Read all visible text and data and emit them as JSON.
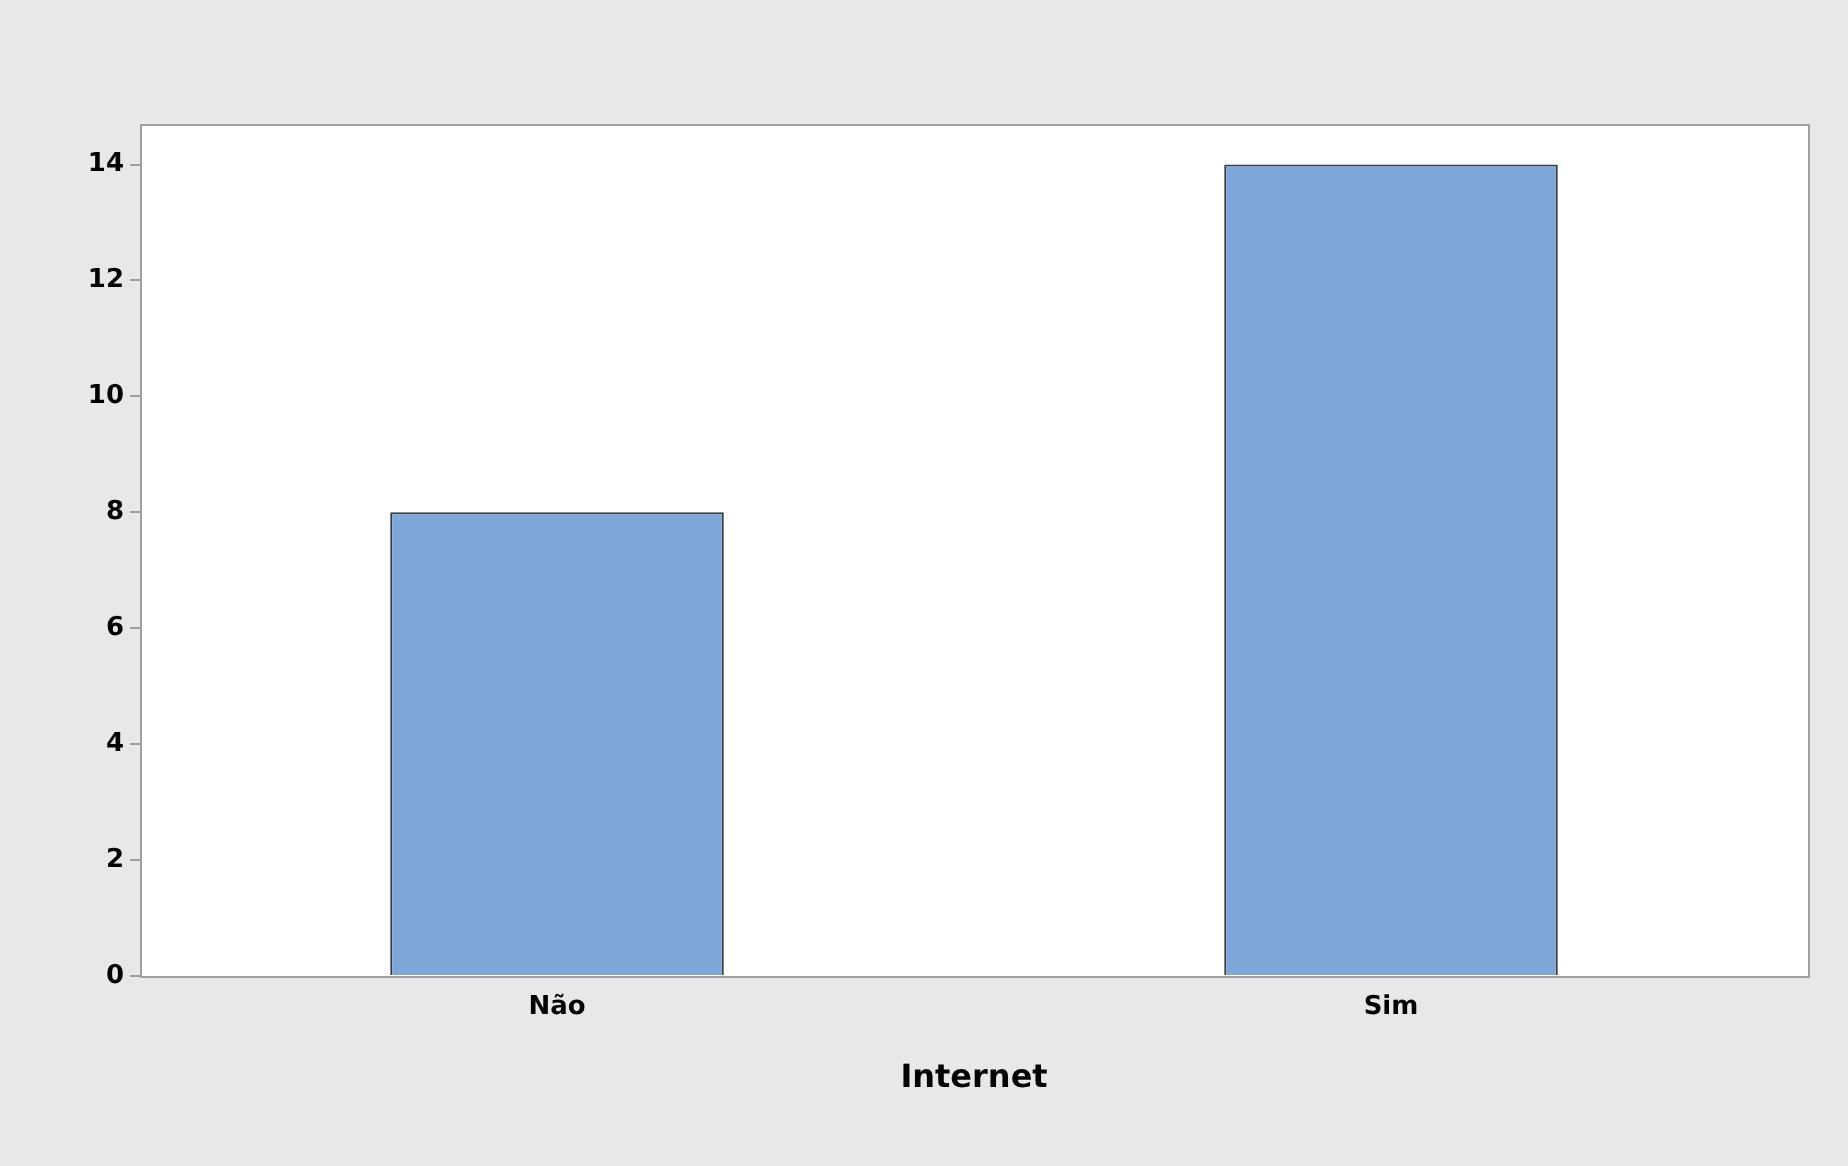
{
  "chart_data": {
    "type": "bar",
    "xlabel": "Internet",
    "categories": [
      "Não",
      "Sim"
    ],
    "values": [
      8,
      14
    ],
    "color": "#7da7d9",
    "ylim": [
      0,
      14.7
    ],
    "yticks": [
      0,
      2,
      4,
      6,
      8,
      10,
      12,
      14
    ],
    "grid": false,
    "legend": false
  }
}
